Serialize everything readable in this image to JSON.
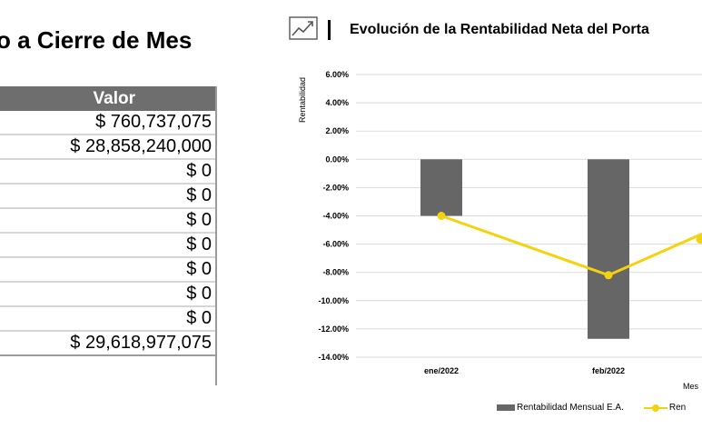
{
  "left_panel": {
    "title": "o a Cierre de Mes",
    "table": {
      "header": "Valor",
      "rows": [
        "$ 760,737,075",
        "$ 28,858,240,000",
        "$ 0",
        "$ 0",
        "$ 0",
        "$ 0",
        "$ 0",
        "$ 0",
        "$ 0",
        "$ 29,618,977,075"
      ]
    }
  },
  "right_panel": {
    "title": "Evolución de la Rentabilidad Neta del Porta",
    "icon": "trend-chart-icon"
  },
  "chart_data": {
    "type": "bar",
    "categories": [
      "ene/2022",
      "feb/2022"
    ],
    "series": [
      {
        "name": "Rentabilidad Mensual E.A.",
        "type": "bar",
        "values": [
          -4.0,
          -12.7
        ],
        "color": "#666666"
      },
      {
        "name": "Ren",
        "type": "line",
        "values": [
          -4.0,
          -8.2
        ],
        "color": "#f3d20f"
      }
    ],
    "line_extra_point": -5.8,
    "ylabel": "Rentabilidad",
    "xlabel": "Mes",
    "ylim": [
      -14,
      6
    ],
    "yticks": [
      "6.00%",
      "4.00%",
      "2.00%",
      "0.00%",
      "-2.00%",
      "-4.00%",
      "-6.00%",
      "-8.00%",
      "-10.00%",
      "-12.00%",
      "-14.00%"
    ],
    "grid": true,
    "legend_position": "bottom"
  }
}
